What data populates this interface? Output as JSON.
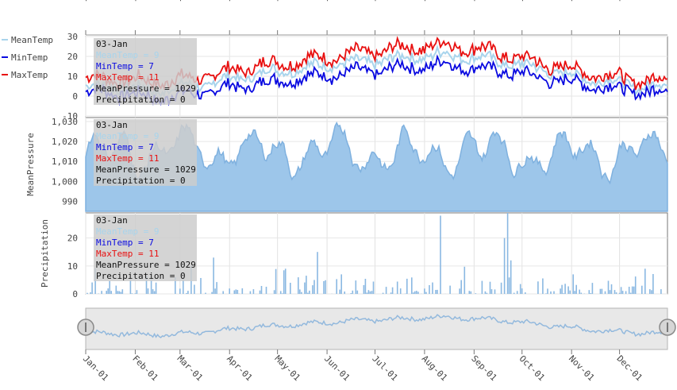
{
  "colors": {
    "mean_temp": "#a8d4ec",
    "min_temp": "#0a0ae0",
    "max_temp": "#e81010",
    "area_fill": "#9dc6ea",
    "area_line": "#7fb1df",
    "bar": "#8ab8e2",
    "tooltip_bg": "#cccccc",
    "navigator_bg": "#e8e8e8",
    "navigator_line": "#93b9dd"
  },
  "legend": [
    {
      "name": "MeanTemp",
      "color": "#a8d4ec"
    },
    {
      "name": "MinTemp",
      "color": "#0a0ae0"
    },
    {
      "name": "MaxTemp",
      "color": "#e81010"
    }
  ],
  "tooltip": {
    "date": "03-Jan",
    "lines": [
      {
        "text": "MeanTemp = 9",
        "color": "#a8d4ec"
      },
      {
        "text": "MinTemp = 7",
        "color": "#0a0ae0"
      },
      {
        "text": "MaxTemp = 11",
        "color": "#e81010"
      },
      {
        "text": "MeanPressure = 1029",
        "color": "#111111"
      },
      {
        "text": "Precipitation = 0",
        "color": "#111111"
      }
    ]
  },
  "chart_data": {
    "type": "line",
    "x_ticks": [
      "Jan-01",
      "Feb-01",
      "Mar-01",
      "Apr-01",
      "May-01",
      "Jun-01",
      "Jul-01",
      "Aug-01",
      "Sep-01",
      "Oct-01",
      "Nov-01",
      "Dec-01"
    ],
    "x_ticks_month_start_day": [
      0,
      31,
      59,
      90,
      120,
      151,
      181,
      212,
      243,
      273,
      304,
      334
    ],
    "days": 365,
    "panels": [
      {
        "ylabel": "",
        "type": "line",
        "ylim": [
          -10,
          30
        ],
        "yticks": [
          "-10",
          "0",
          "10",
          "20",
          "30"
        ],
        "ytick_values": [
          -10,
          0,
          10,
          20,
          30
        ],
        "series": [
          {
            "name": "MeanTemp",
            "color_key": "mean_temp",
            "monthly_anchor_values": [
              5,
              3,
              6,
              11,
              14,
              17,
              19,
              21,
              18,
              13,
              8,
              5
            ]
          },
          {
            "name": "MinTemp",
            "color_key": "min_temp",
            "monthly_anchor_values": [
              2,
              -1,
              2,
              6,
              9,
              12,
              14,
              16,
              13,
              9,
              5,
              2
            ]
          },
          {
            "name": "MaxTemp",
            "color_key": "max_temp",
            "monthly_anchor_values": [
              9,
              7,
              10,
              15,
              18,
              21,
              24,
              26,
              22,
              16,
              11,
              8
            ]
          }
        ]
      },
      {
        "ylabel": "MeanPressure",
        "type": "area",
        "ylim": [
          985,
          1032
        ],
        "yticks": [
          "990",
          "1,000",
          "1,010",
          "1,020",
          "1,030"
        ],
        "ytick_values": [
          990,
          1000,
          1010,
          1020,
          1030
        ],
        "series": [
          {
            "name": "MeanPressure",
            "base": 1015,
            "amplitude": 12
          }
        ]
      },
      {
        "ylabel": "Precipitation",
        "type": "bar",
        "ylim": [
          0,
          29
        ],
        "yticks": [
          "0",
          "10",
          "20"
        ],
        "ytick_values": [
          0,
          10,
          20
        ],
        "series": [
          {
            "name": "Precipitation",
            "notable_days": [
              {
                "day": 222,
                "value": 28
              },
              {
                "day": 264,
                "value": 29
              },
              {
                "day": 262,
                "value": 20
              },
              {
                "day": 145,
                "value": 15
              },
              {
                "day": 266,
                "value": 12
              },
              {
                "day": 80,
                "value": 13
              },
              {
                "day": 350,
                "value": 9
              },
              {
                "day": 125,
                "value": 9
              },
              {
                "day": 160,
                "value": 7
              },
              {
                "day": 305,
                "value": 7
              }
            ]
          }
        ]
      }
    ]
  }
}
